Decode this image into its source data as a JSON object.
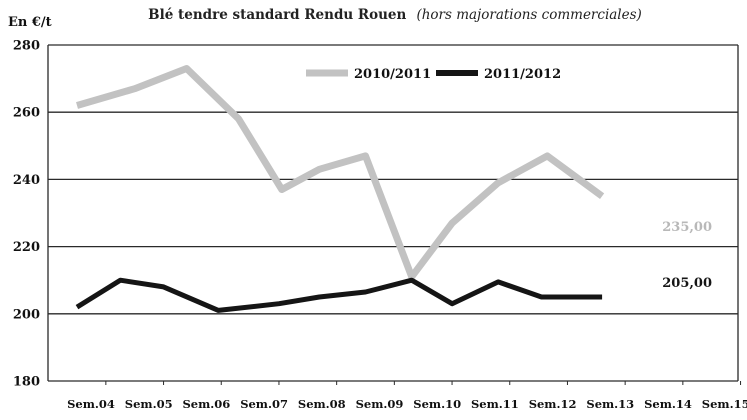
{
  "chart_data": {
    "type": "line",
    "title": "Blé tendre standard Rendu Rouen",
    "subtitle": "(hors majorations commerciales)",
    "ylabel": "En €/t",
    "xlabel": "",
    "ylim": [
      180,
      280
    ],
    "yticks": [
      180,
      200,
      220,
      240,
      260,
      280
    ],
    "grid": true,
    "legend_position": "top-center",
    "categories": [
      "Sem.04",
      "Sem.05",
      "Sem.06",
      "Sem.07",
      "Sem.08",
      "Sem.09",
      "Sem.10",
      "Sem.11",
      "Sem.12",
      "Sem.13",
      "Sem.14",
      "Sem.15"
    ],
    "series": [
      {
        "name": "2010/2011",
        "color": "#c2c2c2",
        "end_label": "235,00",
        "end_label_color": "#b8b8b8",
        "points": [
          {
            "x": 0.0,
            "y": 262
          },
          {
            "x": 1.0,
            "y": 267
          },
          {
            "x": 1.9,
            "y": 273
          },
          {
            "x": 2.8,
            "y": 258
          },
          {
            "x": 3.55,
            "y": 237
          },
          {
            "x": 4.2,
            "y": 243
          },
          {
            "x": 5.0,
            "y": 247
          },
          {
            "x": 5.8,
            "y": 211
          },
          {
            "x": 6.5,
            "y": 227
          },
          {
            "x": 7.3,
            "y": 239
          },
          {
            "x": 8.15,
            "y": 247
          },
          {
            "x": 9.1,
            "y": 235
          }
        ]
      },
      {
        "name": "2011/2012",
        "color": "#151515",
        "end_label": "205,00",
        "end_label_color": "#151515",
        "points": [
          {
            "x": 0.0,
            "y": 202
          },
          {
            "x": 0.75,
            "y": 210
          },
          {
            "x": 1.5,
            "y": 208
          },
          {
            "x": 2.45,
            "y": 201
          },
          {
            "x": 3.5,
            "y": 203
          },
          {
            "x": 4.2,
            "y": 205
          },
          {
            "x": 5.0,
            "y": 206.5
          },
          {
            "x": 5.8,
            "y": 210
          },
          {
            "x": 6.5,
            "y": 203
          },
          {
            "x": 7.3,
            "y": 209.5
          },
          {
            "x": 8.05,
            "y": 205
          },
          {
            "x": 9.1,
            "y": 205
          }
        ]
      }
    ]
  }
}
